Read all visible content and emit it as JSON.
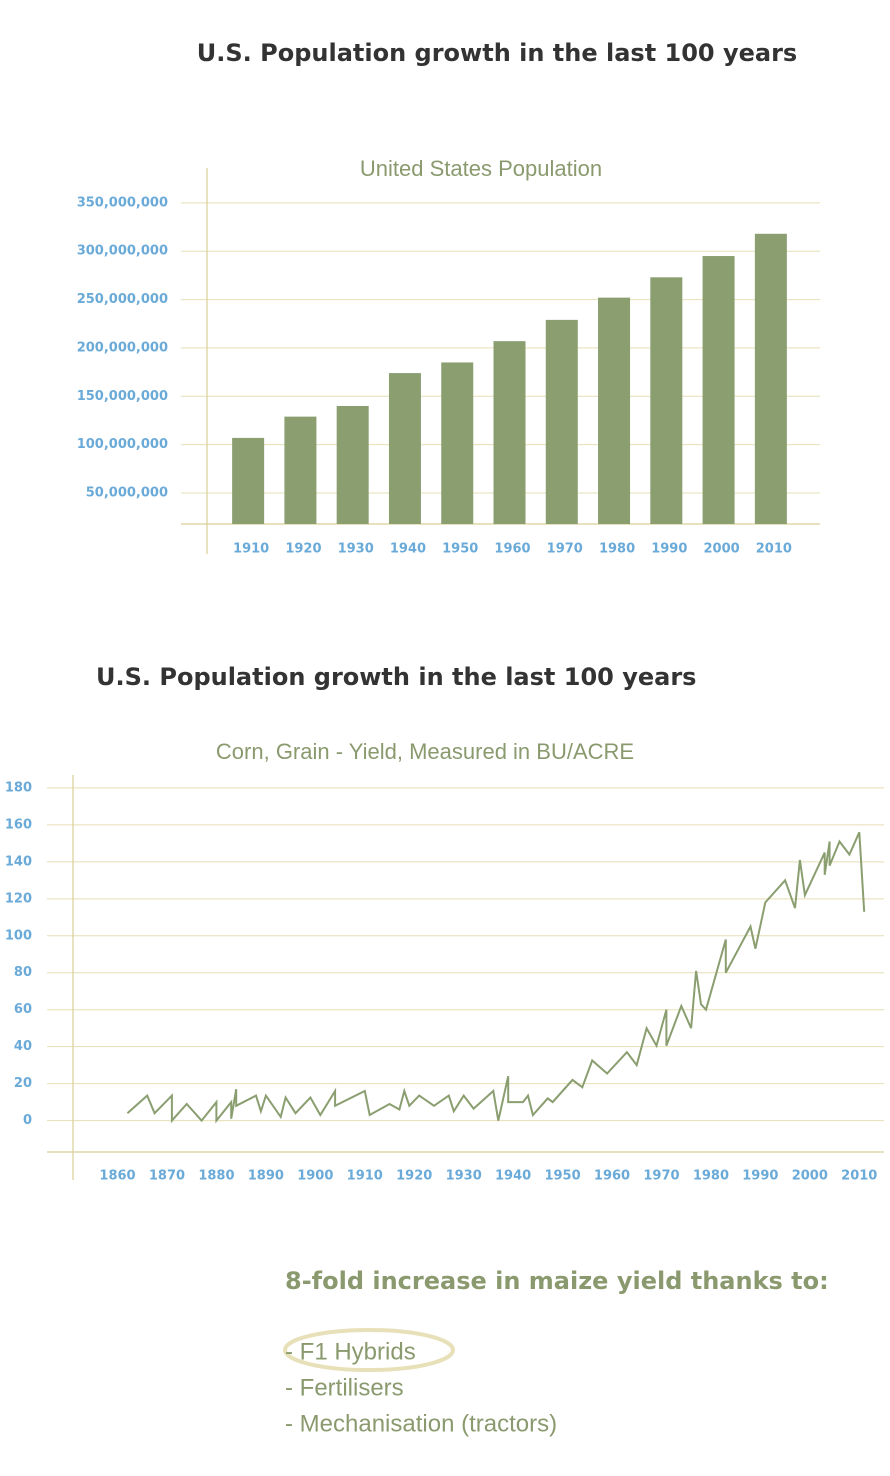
{
  "chart_data": [
    {
      "type": "bar",
      "title": "U.S. Population growth in the last 100 years",
      "subtitle": "United States Population",
      "categories": [
        "1910",
        "1920",
        "1930",
        "1940",
        "1950",
        "1960",
        "1970",
        "1980",
        "1990",
        "2000",
        "2010"
      ],
      "values": [
        107000000,
        129000000,
        140000000,
        174000000,
        185000000,
        207000000,
        229000000,
        252000000,
        273000000,
        295000000,
        318000000
      ],
      "color": "#8a9e70",
      "ylim": [
        18000000,
        386000000
      ],
      "yticks": [
        {
          "value": 50000000,
          "label": "50,000,000"
        },
        {
          "value": 100000000,
          "label": "100,000,000"
        },
        {
          "value": 150000000,
          "label": "150,000,000"
        },
        {
          "value": 200000000,
          "label": "200,000,000"
        },
        {
          "value": 250000000,
          "label": "250,000,000"
        },
        {
          "value": 300000000,
          "label": "300,000,000"
        },
        {
          "value": 350000000,
          "label": "350,000,000"
        }
      ],
      "grid": true
    },
    {
      "type": "line",
      "title": "U.S. Population growth in the last 100 years",
      "subtitle": "Corn, Grain - Yield, Measured in BU/ACRE",
      "x": [
        1862,
        1866,
        1867.5,
        1871,
        1871,
        1874,
        1877,
        1880,
        1880,
        1883,
        1883,
        1884,
        1884,
        1888,
        1889,
        1890,
        1893,
        1894,
        1896,
        1899,
        1901,
        1904,
        1904,
        1910,
        1911,
        1915,
        1917,
        1918,
        1919,
        1921,
        1924,
        1927,
        1928,
        1930,
        1932,
        1936,
        1937,
        1939,
        1939,
        1942,
        1943,
        1944,
        1947,
        1948,
        1952,
        1954,
        1956,
        1959,
        1963,
        1965,
        1967,
        1969,
        1971,
        1971,
        1974,
        1976,
        1977,
        1978,
        1979,
        1983,
        1983,
        1988,
        1989,
        1991,
        1995,
        1997,
        1998,
        1999,
        2003,
        2003,
        2004,
        2004,
        2006,
        2008,
        2010,
        2011
      ],
      "values": [
        4,
        13.5,
        4,
        13.5,
        0,
        9,
        0,
        10,
        0,
        10,
        1,
        17,
        8,
        13.5,
        5,
        13.5,
        2,
        12.5,
        4,
        12.5,
        3,
        16,
        8,
        16,
        3,
        9,
        6,
        16,
        8,
        13.5,
        8,
        13.5,
        5,
        13.5,
        6.5,
        16,
        0,
        24,
        10,
        10,
        13.5,
        3,
        12,
        10,
        22,
        18,
        32.5,
        25.5,
        37,
        30,
        50,
        40.5,
        60,
        40.5,
        62,
        50,
        81,
        63,
        60,
        98,
        80,
        105,
        93,
        118,
        130,
        115,
        141,
        122,
        145,
        133,
        151,
        138,
        151,
        144,
        156,
        113
      ],
      "color": "#8a9e70",
      "xlim": [
        1851,
        2015
      ],
      "xticks": [
        1860,
        1870,
        1880,
        1890,
        1900,
        1910,
        1920,
        1930,
        1940,
        1950,
        1960,
        1970,
        1980,
        1990,
        2000,
        2010
      ],
      "ylim": [
        -17,
        187
      ],
      "yticks": [
        0,
        20,
        40,
        60,
        80,
        100,
        120,
        140,
        160,
        180
      ],
      "grid": true
    }
  ],
  "notes": {
    "heading": "8-fold increase in maize yield thanks to:",
    "items": [
      "- F1 Hybrids",
      "- Fertilisers",
      "- Mechanisation (tractors)"
    ]
  }
}
